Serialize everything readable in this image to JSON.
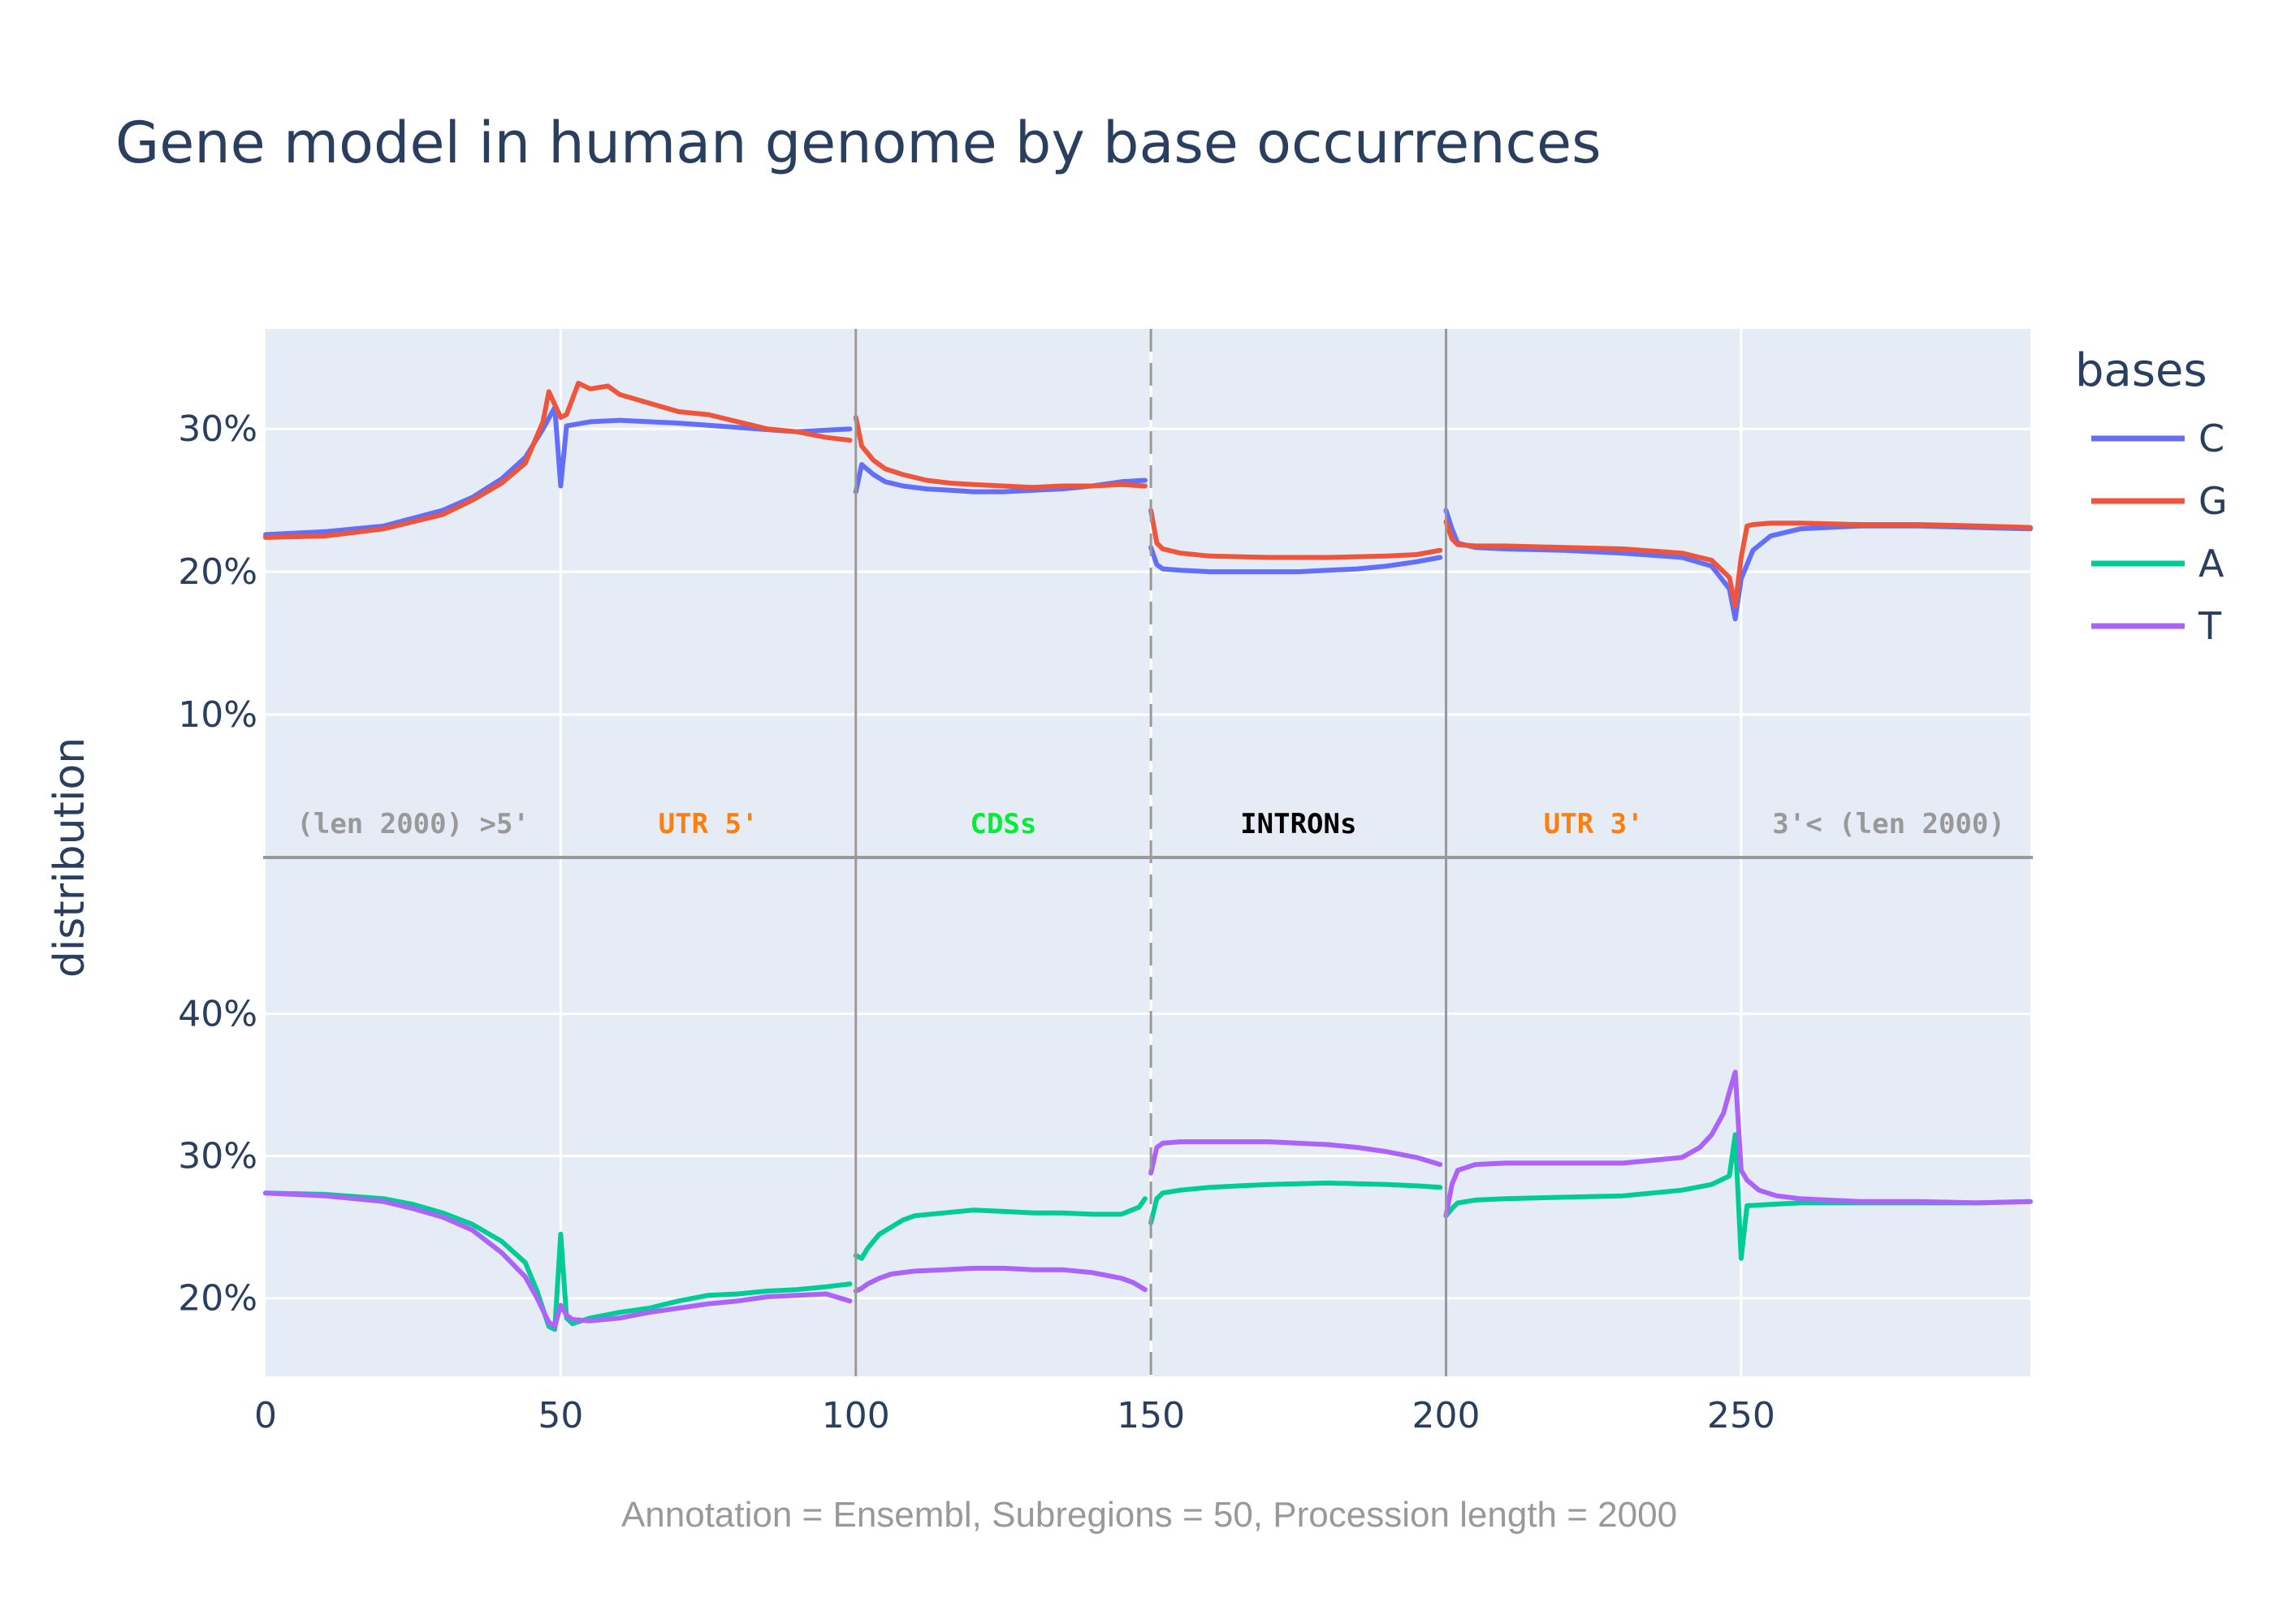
{
  "chart_data": {
    "type": "line",
    "title": "Gene model in human genome by base occurrences",
    "ylabel": "distribution",
    "xlabel": "",
    "footer": "Annotation = Ensembl, Subregions = 50, Procession length = 2000",
    "legend": {
      "title": "bases",
      "placement": "right"
    },
    "grid": true,
    "xlim": [
      0,
      299
    ],
    "x_ticks": [
      0,
      50,
      100,
      150,
      200,
      250
    ],
    "region_boundaries": [
      {
        "x": 100,
        "style": "solid"
      },
      {
        "x": 150,
        "style": "dashed"
      },
      {
        "x": 200,
        "style": "solid"
      }
    ],
    "region_labels": [
      {
        "text": "(len 2000) >5'",
        "x": 25,
        "color": "#999999"
      },
      {
        "text": "UTR 5'",
        "x": 75,
        "color": "#ff7f0e"
      },
      {
        "text": "CDSs",
        "x": 125,
        "color": "#00ee33"
      },
      {
        "text": "INTRONs",
        "x": 175,
        "color": "#000000"
      },
      {
        "text": "UTR 3'",
        "x": 225,
        "color": "#ff7f0e"
      },
      {
        "text": "3'< (len 2000)",
        "x": 275,
        "color": "#999999"
      }
    ],
    "panels": [
      {
        "name": "top",
        "ylim": [
          0,
          37
        ],
        "y_ticks": [
          10,
          20,
          30
        ],
        "y_tick_labels": [
          "10%",
          "20%",
          "30%"
        ],
        "series": [
          {
            "name": "C",
            "color": "#636efa",
            "segments": [
              {
                "x": [
                  0,
                  10,
                  20,
                  30,
                  35,
                  40,
                  44,
                  47,
                  49,
                  50,
                  51,
                  55,
                  60,
                  70,
                  80,
                  90,
                  99
                ],
                "y": [
                  22.6,
                  22.8,
                  23.2,
                  24.3,
                  25.2,
                  26.5,
                  28.0,
                  30.0,
                  31.5,
                  26.0,
                  30.2,
                  30.5,
                  30.6,
                  30.4,
                  30.1,
                  29.8,
                  30.0
                ]
              },
              {
                "x": [
                  100,
                  101,
                  103,
                  105,
                  108,
                  112,
                  116,
                  120,
                  125,
                  130,
                  135,
                  140,
                  145,
                  149
                ],
                "y": [
                  25.6,
                  27.5,
                  26.8,
                  26.3,
                  26.0,
                  25.8,
                  25.7,
                  25.6,
                  25.6,
                  25.7,
                  25.8,
                  26.0,
                  26.3,
                  26.4
                ]
              },
              {
                "x": [
                  150,
                  151,
                  152,
                  155,
                  160,
                  165,
                  170,
                  175,
                  180,
                  185,
                  190,
                  195,
                  199
                ],
                "y": [
                  21.7,
                  20.5,
                  20.2,
                  20.1,
                  20.0,
                  20.0,
                  20.0,
                  20.0,
                  20.1,
                  20.2,
                  20.4,
                  20.7,
                  21.0
                ]
              },
              {
                "x": [
                  200,
                  201,
                  202,
                  205,
                  210,
                  220,
                  230,
                  240,
                  245,
                  248,
                  249,
                  250,
                  252,
                  255,
                  260,
                  270,
                  280,
                  290,
                  299
                ],
                "y": [
                  24.3,
                  23.0,
                  22.0,
                  21.7,
                  21.6,
                  21.5,
                  21.3,
                  21.0,
                  20.4,
                  18.8,
                  16.7,
                  19.5,
                  21.5,
                  22.5,
                  23.0,
                  23.2,
                  23.2,
                  23.1,
                  23.0
                ]
              }
            ]
          },
          {
            "name": "G",
            "color": "#ef553b",
            "segments": [
              {
                "x": [
                  0,
                  10,
                  20,
                  30,
                  35,
                  40,
                  44,
                  47,
                  48,
                  50,
                  51,
                  53,
                  55,
                  58,
                  60,
                  65,
                  70,
                  75,
                  80,
                  85,
                  90,
                  95,
                  99
                ],
                "y": [
                  22.4,
                  22.5,
                  23.0,
                  24.0,
                  25.0,
                  26.2,
                  27.6,
                  30.5,
                  32.6,
                  30.8,
                  31.0,
                  33.2,
                  32.8,
                  33.0,
                  32.4,
                  31.8,
                  31.2,
                  31.0,
                  30.5,
                  30.0,
                  29.8,
                  29.4,
                  29.2
                ]
              },
              {
                "x": [
                  100,
                  101,
                  103,
                  105,
                  108,
                  112,
                  116,
                  120,
                  125,
                  130,
                  135,
                  140,
                  145,
                  149
                ],
                "y": [
                  30.8,
                  28.8,
                  27.8,
                  27.2,
                  26.8,
                  26.4,
                  26.2,
                  26.1,
                  26.0,
                  25.9,
                  26.0,
                  26.0,
                  26.1,
                  26.0
                ]
              },
              {
                "x": [
                  150,
                  151,
                  152,
                  155,
                  160,
                  170,
                  180,
                  190,
                  195,
                  199
                ],
                "y": [
                  24.3,
                  22.0,
                  21.6,
                  21.3,
                  21.1,
                  21.0,
                  21.0,
                  21.1,
                  21.2,
                  21.5
                ]
              },
              {
                "x": [
                  200,
                  201,
                  202,
                  205,
                  210,
                  220,
                  230,
                  240,
                  245,
                  248,
                  249,
                  250,
                  251,
                  252,
                  255,
                  260,
                  270,
                  280,
                  290,
                  299
                ],
                "y": [
                  23.5,
                  22.3,
                  21.9,
                  21.8,
                  21.8,
                  21.7,
                  21.6,
                  21.3,
                  20.8,
                  19.6,
                  17.6,
                  21.0,
                  23.2,
                  23.3,
                  23.4,
                  23.4,
                  23.3,
                  23.3,
                  23.2,
                  23.1
                ]
              }
            ]
          }
        ]
      },
      {
        "name": "bottom",
        "ylim": [
          14.5,
          51
        ],
        "y_ticks": [
          20,
          30,
          40
        ],
        "y_tick_labels": [
          "20%",
          "30%",
          "40%"
        ],
        "series": [
          {
            "name": "A",
            "color": "#00cc96",
            "segments": [
              {
                "x": [
                  0,
                  10,
                  20,
                  25,
                  30,
                  35,
                  40,
                  44,
                  46,
                  48,
                  49,
                  50,
                  51,
                  52,
                  55,
                  60,
                  65,
                  70,
                  75,
                  80,
                  85,
                  90,
                  95,
                  99
                ],
                "y": [
                  27.4,
                  27.3,
                  27.0,
                  26.6,
                  26.0,
                  25.2,
                  24.0,
                  22.5,
                  20.5,
                  18.0,
                  17.8,
                  24.5,
                  18.6,
                  18.2,
                  18.6,
                  19.0,
                  19.3,
                  19.8,
                  20.2,
                  20.3,
                  20.5,
                  20.6,
                  20.8,
                  21.0
                ]
              },
              {
                "x": [
                  100,
                  101,
                  102,
                  104,
                  106,
                  108,
                  110,
                  115,
                  120,
                  125,
                  130,
                  135,
                  140,
                  145,
                  148,
                  149
                ],
                "y": [
                  23.0,
                  22.8,
                  23.5,
                  24.5,
                  25.0,
                  25.5,
                  25.8,
                  26.0,
                  26.2,
                  26.1,
                  26.0,
                  26.0,
                  25.9,
                  25.9,
                  26.4,
                  27.0
                ]
              },
              {
                "x": [
                  150,
                  151,
                  152,
                  155,
                  160,
                  165,
                  170,
                  180,
                  190,
                  195,
                  199
                ],
                "y": [
                  25.3,
                  27.0,
                  27.4,
                  27.6,
                  27.8,
                  27.9,
                  28.0,
                  28.1,
                  28.0,
                  27.9,
                  27.8
                ]
              },
              {
                "x": [
                  200,
                  201,
                  202,
                  205,
                  210,
                  220,
                  230,
                  240,
                  245,
                  248,
                  249,
                  250,
                  251,
                  255,
                  260,
                  270,
                  280,
                  290,
                  299
                ],
                "y": [
                  25.8,
                  26.3,
                  26.7,
                  26.9,
                  27.0,
                  27.1,
                  27.2,
                  27.6,
                  28.0,
                  28.6,
                  31.5,
                  22.8,
                  26.5,
                  26.6,
                  26.7,
                  26.7,
                  26.7,
                  26.7,
                  26.8
                ]
              }
            ]
          },
          {
            "name": "T",
            "color": "#ab63fa",
            "segments": [
              {
                "x": [
                  0,
                  10,
                  20,
                  25,
                  30,
                  35,
                  40,
                  44,
                  46,
                  48,
                  49,
                  50,
                  51,
                  52,
                  55,
                  60,
                  65,
                  70,
                  75,
                  80,
                  85,
                  90,
                  95,
                  99
                ],
                "y": [
                  27.4,
                  27.2,
                  26.8,
                  26.3,
                  25.7,
                  24.8,
                  23.2,
                  21.5,
                  20.0,
                  18.3,
                  18.0,
                  19.5,
                  18.8,
                  18.5,
                  18.4,
                  18.6,
                  19.0,
                  19.3,
                  19.6,
                  19.8,
                  20.1,
                  20.2,
                  20.3,
                  19.8
                ]
              },
              {
                "x": [
                  100,
                  101,
                  102,
                  104,
                  106,
                  110,
                  115,
                  120,
                  125,
                  130,
                  135,
                  140,
                  145,
                  147,
                  149
                ],
                "y": [
                  20.5,
                  20.7,
                  21.0,
                  21.4,
                  21.7,
                  21.9,
                  22.0,
                  22.1,
                  22.1,
                  22.0,
                  22.0,
                  21.8,
                  21.4,
                  21.1,
                  20.6
                ]
              },
              {
                "x": [
                  150,
                  151,
                  152,
                  155,
                  160,
                  165,
                  170,
                  175,
                  180,
                  185,
                  190,
                  195,
                  199
                ],
                "y": [
                  28.8,
                  30.6,
                  30.9,
                  31.0,
                  31.0,
                  31.0,
                  31.0,
                  30.9,
                  30.8,
                  30.6,
                  30.3,
                  29.9,
                  29.4
                ]
              },
              {
                "x": [
                  200,
                  201,
                  202,
                  205,
                  210,
                  220,
                  230,
                  240,
                  243,
                  245,
                  247,
                  248,
                  249,
                  250,
                  251,
                  253,
                  256,
                  260,
                  270,
                  280,
                  290,
                  299
                ],
                "y": [
                  25.8,
                  28.0,
                  29.0,
                  29.4,
                  29.5,
                  29.5,
                  29.5,
                  29.9,
                  30.6,
                  31.5,
                  33.0,
                  34.5,
                  35.9,
                  29.0,
                  28.3,
                  27.6,
                  27.2,
                  27.0,
                  26.8,
                  26.8,
                  26.7,
                  26.8
                ]
              }
            ]
          }
        ]
      }
    ]
  }
}
